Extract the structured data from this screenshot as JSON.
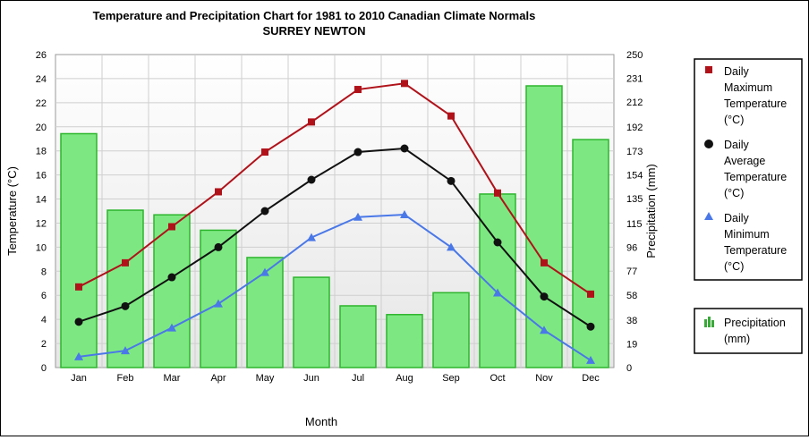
{
  "chart_data": {
    "type": "bar+line",
    "title": "Temperature and Precipitation Chart for 1981 to 2010 Canadian Climate Normals",
    "subtitle": "SURREY NEWTON",
    "xlabel": "Month",
    "ylabel_left": "Temperature (°C)",
    "ylabel_right": "Precipitation (mm)",
    "categories": [
      "Jan",
      "Feb",
      "Mar",
      "Apr",
      "May",
      "Jun",
      "Jul",
      "Aug",
      "Sep",
      "Oct",
      "Nov",
      "Dec"
    ],
    "ylim_left": [
      0,
      26
    ],
    "yticks_left": [
      "0",
      "2",
      "4",
      "6",
      "8",
      "10",
      "12",
      "14",
      "16",
      "18",
      "20",
      "22",
      "24",
      "26"
    ],
    "ylim_right": [
      0,
      250
    ],
    "yticks_right": [
      "0",
      "19",
      "38",
      "58",
      "77",
      "96",
      "115",
      "135",
      "154",
      "173",
      "192",
      "212",
      "231",
      "250"
    ],
    "grid": true,
    "legend_position": "right",
    "series": [
      {
        "name": "Daily Maximum Temperature (°C)",
        "kind": "line",
        "axis": "left",
        "marker": "square",
        "color": "#b0121a",
        "values": [
          6.7,
          8.7,
          11.7,
          14.6,
          17.9,
          20.4,
          23.1,
          23.6,
          20.9,
          14.5,
          8.7,
          6.1
        ]
      },
      {
        "name": "Daily Average Temperature (°C)",
        "kind": "line",
        "axis": "left",
        "marker": "circle",
        "color": "#111111",
        "values": [
          3.8,
          5.1,
          7.5,
          10.0,
          13.0,
          15.6,
          17.9,
          18.2,
          15.5,
          10.4,
          5.9,
          3.4
        ]
      },
      {
        "name": "Daily Minimum Temperature (°C)",
        "kind": "line",
        "axis": "left",
        "marker": "triangle",
        "color": "#4a78e8",
        "values": [
          0.9,
          1.4,
          3.3,
          5.3,
          7.9,
          10.8,
          12.5,
          12.7,
          10.0,
          6.2,
          3.1,
          0.6
        ]
      },
      {
        "name": "Precipitation (mm)",
        "kind": "bar",
        "axis": "right",
        "color": "#7de882",
        "stroke": "#2db52d",
        "values": [
          186.8,
          125.7,
          122.0,
          109.7,
          87.9,
          72.1,
          49.3,
          42.3,
          59.8,
          138.6,
          225.0,
          182.1
        ]
      }
    ]
  }
}
